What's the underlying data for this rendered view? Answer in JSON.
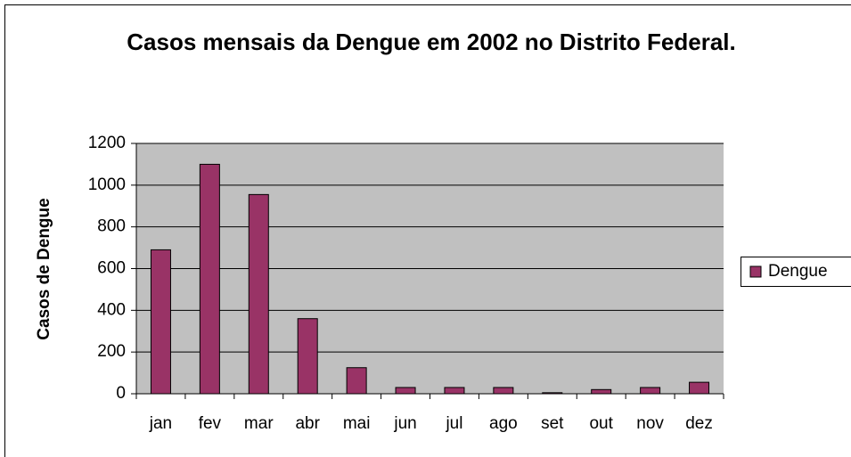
{
  "chart_data": {
    "type": "bar",
    "title": "Casos mensais da Dengue em 2002 no Distrito Federal.",
    "y_label": "Casos de Dengue",
    "categories": [
      "jan",
      "fev",
      "mar",
      "abr",
      "mai",
      "jun",
      "jul",
      "ago",
      "set",
      "out",
      "nov",
      "dez"
    ],
    "series": [
      {
        "name": "Dengue",
        "color": "#993366",
        "values": [
          690,
          1100,
          955,
          360,
          125,
          30,
          30,
          30,
          5,
          20,
          30,
          55
        ]
      }
    ],
    "ylim": [
      0,
      1200
    ],
    "yticks": [
      0,
      200,
      400,
      600,
      800,
      1000,
      1200
    ],
    "grid": true,
    "legend": "right"
  }
}
